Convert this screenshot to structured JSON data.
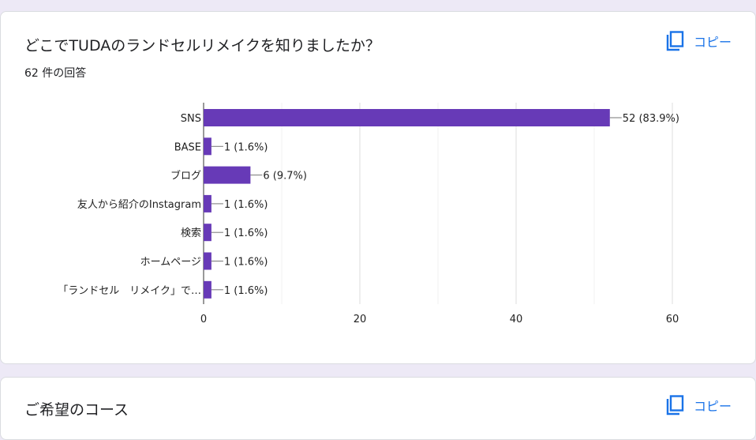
{
  "card1": {
    "question": "どこでTUDAのランドセルリメイクを知りましたか？",
    "response_count": "62 件の回答",
    "copy_label": "コピー"
  },
  "card2": {
    "question": "ご希望のコース",
    "copy_label": "コピー"
  },
  "colors": {
    "bar": "#673ab7",
    "accent": "#1a73e8",
    "background": "#ede9f6"
  },
  "icons": {
    "copy": "copy-icon"
  },
  "chart_data": {
    "type": "bar",
    "orientation": "horizontal",
    "categories": [
      "SNS",
      "BASE",
      "ブログ",
      "友人から紹介のInstagram",
      "検索",
      "ホームページ",
      "「ランドセル　リメイク」で…"
    ],
    "values": [
      52,
      1,
      6,
      1,
      1,
      1,
      1
    ],
    "data_labels": [
      "52 (83.9%)",
      "1 (1.6%)",
      "6 (9.7%)",
      "1 (1.6%)",
      "1 (1.6%)",
      "1 (1.6%)",
      "1 (1.6%)"
    ],
    "x_ticks": [
      "0",
      "20",
      "40",
      "60"
    ],
    "xlim": [
      0,
      60
    ],
    "grid": true
  }
}
